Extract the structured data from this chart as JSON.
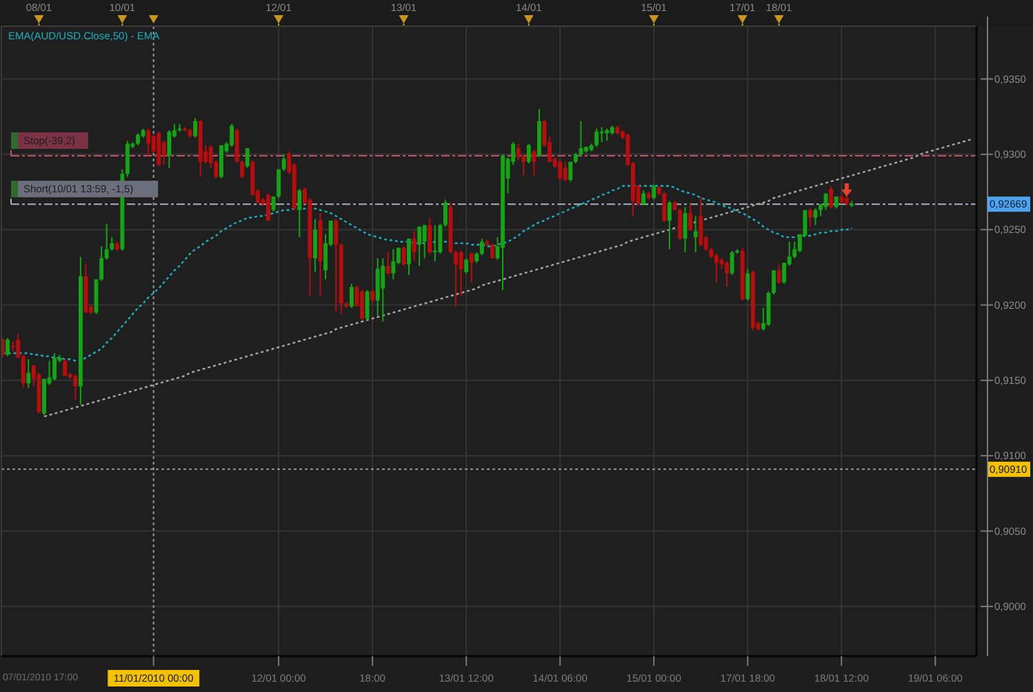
{
  "chart_data": [
    {
      "type": "other",
      "categories": [
        null,
        null,
        null,
        null,
        null,
        null,
        null,
        "08/01",
        null,
        null,
        null,
        null,
        null,
        null,
        null,
        null,
        null,
        null,
        null,
        null,
        null,
        null,
        null,
        "10/01",
        null,
        null,
        null,
        null,
        null,
        null,
        null,
        null,
        null,
        null,
        null,
        null,
        null,
        null,
        null,
        null,
        null,
        null,
        null,
        null,
        null,
        null,
        null,
        null,
        null,
        null,
        null,
        null,
        null,
        "12/01",
        null,
        null,
        null,
        null,
        null,
        null,
        null,
        null,
        null,
        null,
        null,
        null,
        null,
        null,
        null,
        null,
        null,
        null,
        null,
        null,
        null,
        null,
        null,
        "13/01",
        null,
        null,
        null,
        null,
        null,
        null,
        null,
        null,
        null,
        null,
        null,
        null,
        null,
        null,
        null,
        null,
        null,
        null,
        null,
        null,
        null,
        null,
        null,
        "14/01",
        null,
        null,
        null,
        null,
        null,
        null,
        null,
        null,
        null,
        null,
        null,
        null,
        null,
        null,
        null,
        null,
        null,
        null,
        null,
        null,
        null,
        null,
        null,
        "15/01",
        null,
        null,
        null,
        null,
        null,
        null,
        null,
        null,
        null,
        null,
        null,
        null,
        null,
        null,
        null,
        null,
        "17/01",
        null,
        null,
        null,
        null,
        null,
        null,
        "18/01",
        null,
        null,
        null,
        null,
        null,
        null,
        null,
        null,
        null,
        null,
        null,
        null,
        null,
        null,
        null,
        null,
        null,
        null,
        null,
        null,
        null,
        null,
        null,
        null,
        null,
        null,
        null,
        null,
        null,
        null,
        null,
        null,
        null,
        null,
        null,
        null,
        null
      ]
    },
    {
      "type": "candlestick",
      "categories": [
        null,
        null,
        null,
        null,
        null,
        null,
        null,
        null,
        null,
        null,
        null,
        null,
        null,
        null,
        null,
        null,
        null,
        null,
        null,
        null,
        null,
        null,
        null,
        null,
        null,
        null,
        null,
        null,
        null,
        "11/01/2010 00:00",
        null,
        null,
        null,
        null,
        null,
        null,
        null,
        null,
        null,
        null,
        null,
        null,
        null,
        null,
        null,
        null,
        null,
        null,
        null,
        null,
        null,
        null,
        null,
        "12/01 00:00",
        null,
        null,
        null,
        null,
        null,
        null,
        null,
        null,
        null,
        null,
        null,
        null,
        null,
        null,
        null,
        null,
        null,
        "18:00",
        null,
        null,
        null,
        null,
        null,
        null,
        null,
        null,
        null,
        null,
        null,
        null,
        null,
        null,
        null,
        null,
        null,
        "13/01 12:00",
        null,
        null,
        null,
        null,
        null,
        null,
        null,
        null,
        null,
        null,
        null,
        null,
        null,
        null,
        null,
        null,
        null,
        "14/01 06:00",
        null,
        null,
        null,
        null,
        null,
        null,
        null,
        null,
        null,
        null,
        null,
        null,
        null,
        null,
        null,
        null,
        null,
        "15/01 00:00",
        null,
        null,
        null,
        null,
        null,
        null,
        null,
        null,
        null,
        null,
        null,
        null,
        null,
        null,
        null,
        null,
        null,
        "17/01 18:00",
        null,
        null,
        null,
        null,
        null,
        null,
        null,
        null,
        null,
        null,
        null,
        null,
        null,
        null,
        null,
        null,
        null,
        "18/01 12:00",
        null,
        null,
        null,
        null,
        null,
        null,
        null,
        null,
        null,
        null,
        null,
        null,
        null,
        null,
        null,
        null,
        null,
        "19/01 06:00",
        null,
        null,
        null,
        null,
        null,
        null,
        null
      ],
      "ohlc": [
        [
          0.9177,
          0.9178,
          0.9165,
          0.9167
        ],
        [
          0.9167,
          0.9178,
          0.9166,
          0.9177
        ],
        [
          0.9173,
          0.9176,
          0.9169,
          0.9172
        ],
        [
          0.9177,
          0.9181,
          0.9165,
          0.9165
        ],
        [
          0.9166,
          0.9167,
          0.9145,
          0.9148
        ],
        [
          0.9148,
          0.9164,
          0.9145,
          0.9155
        ],
        [
          0.916,
          0.916,
          0.9146,
          0.9151
        ],
        [
          0.9154,
          0.9155,
          0.9128,
          0.9129
        ],
        [
          0.9128,
          0.9151,
          0.9127,
          0.9151
        ],
        [
          0.9148,
          0.9163,
          0.9147,
          0.9152
        ],
        [
          0.9151,
          0.9168,
          0.915,
          0.9165
        ],
        [
          0.9163,
          0.9167,
          0.9162,
          0.9165
        ],
        [
          0.9163,
          0.9164,
          0.9153,
          0.9153
        ],
        [
          0.9154,
          0.9155,
          0.9151,
          0.9152
        ],
        [
          0.9153,
          0.9154,
          0.9137,
          0.9146
        ],
        [
          0.9146,
          0.9232,
          0.9134,
          0.9219
        ],
        [
          0.9219,
          0.9227,
          0.9195,
          0.9195
        ],
        [
          0.9199,
          0.92,
          0.9194,
          0.9195
        ],
        [
          0.9195,
          0.9217,
          0.9194,
          0.9217
        ],
        [
          0.9217,
          0.9239,
          0.9216,
          0.9231
        ],
        [
          0.9231,
          0.9254,
          0.923,
          0.9237
        ],
        [
          0.9237,
          0.9245,
          0.9236,
          0.9241
        ],
        [
          0.9241,
          0.9242,
          0.9236,
          0.9237
        ],
        [
          0.9237,
          0.929,
          0.9236,
          0.9287
        ],
        [
          0.9287,
          0.9309,
          0.9285,
          0.9307
        ],
        [
          0.9305,
          0.9308,
          0.9304,
          0.9307
        ],
        [
          0.9307,
          0.9314,
          0.9306,
          0.9313
        ],
        [
          0.9312,
          0.9317,
          0.9311,
          0.9316
        ],
        [
          0.9316,
          0.9317,
          0.9299,
          0.9307
        ],
        [
          0.9312,
          0.9313,
          0.9301,
          0.9302
        ],
        [
          0.9314,
          0.9315,
          0.9292,
          0.9293
        ],
        [
          0.9308,
          0.9309,
          0.9293,
          0.9299
        ],
        [
          0.9299,
          0.9316,
          0.9291,
          0.9315
        ],
        [
          0.9312,
          0.932,
          0.9311,
          0.9316
        ],
        [
          0.9316,
          0.932,
          0.9315,
          0.9317
        ],
        [
          0.9317,
          0.9318,
          0.9315,
          0.9316
        ],
        [
          0.9316,
          0.9317,
          0.9311,
          0.9312
        ],
        [
          0.9312,
          0.9324,
          0.9311,
          0.9322
        ],
        [
          0.9322,
          0.9323,
          0.9285,
          0.9295
        ],
        [
          0.9302,
          0.9306,
          0.9294,
          0.9295
        ],
        [
          0.9305,
          0.9306,
          0.9291,
          0.9294
        ],
        [
          0.9295,
          0.9296,
          0.9284,
          0.9285
        ],
        [
          0.9285,
          0.9306,
          0.9284,
          0.9306
        ],
        [
          0.9302,
          0.9308,
          0.9301,
          0.9307
        ],
        [
          0.9306,
          0.932,
          0.9305,
          0.9319
        ],
        [
          0.9316,
          0.9317,
          0.9295,
          0.9295
        ],
        [
          0.9295,
          0.9296,
          0.9284,
          0.9285
        ],
        [
          0.9292,
          0.9304,
          0.9291,
          0.9304
        ],
        [
          0.9295,
          0.9296,
          0.9273,
          0.9273
        ],
        [
          0.9276,
          0.9277,
          0.9267,
          0.9268
        ],
        [
          0.927,
          0.9271,
          0.9266,
          0.9267
        ],
        [
          0.9273,
          0.9274,
          0.9256,
          0.9256
        ],
        [
          0.9263,
          0.9272,
          0.9262,
          0.9272
        ],
        [
          0.9272,
          0.929,
          0.9271,
          0.929
        ],
        [
          0.929,
          0.93,
          0.9289,
          0.9297
        ],
        [
          0.93,
          0.9302,
          0.9287,
          0.9288
        ],
        [
          0.9293,
          0.9294,
          0.9263,
          0.9264
        ],
        [
          0.9263,
          0.9277,
          0.9245,
          0.9276
        ],
        [
          0.9277,
          0.9278,
          0.9267,
          0.9268
        ],
        [
          0.927,
          0.9271,
          0.9206,
          0.9231
        ],
        [
          0.9231,
          0.9257,
          0.9222,
          0.925
        ],
        [
          0.9256,
          0.9261,
          0.9206,
          0.9229
        ],
        [
          0.9223,
          0.9247,
          0.9217,
          0.9241
        ],
        [
          0.924,
          0.9256,
          0.9239,
          0.9256
        ],
        [
          0.9256,
          0.9257,
          0.9196,
          0.924
        ],
        [
          0.924,
          0.9241,
          0.9194,
          0.9201
        ],
        [
          0.9201,
          0.9202,
          0.9198,
          0.9199
        ],
        [
          0.9199,
          0.9214,
          0.9198,
          0.9212
        ],
        [
          0.9212,
          0.9213,
          0.9199,
          0.9199
        ],
        [
          0.9209,
          0.921,
          0.919,
          0.9191
        ],
        [
          0.9191,
          0.921,
          0.919,
          0.9209
        ],
        [
          0.9209,
          0.921,
          0.9202,
          0.9203
        ],
        [
          0.9203,
          0.9231,
          0.9193,
          0.9224
        ],
        [
          0.9211,
          0.9231,
          0.9189,
          0.9226
        ],
        [
          0.9226,
          0.9235,
          0.922,
          0.9221
        ],
        [
          0.9221,
          0.9237,
          0.9217,
          0.9229
        ],
        [
          0.9228,
          0.9238,
          0.9227,
          0.9238
        ],
        [
          0.9238,
          0.9239,
          0.9226,
          0.9227
        ],
        [
          0.9227,
          0.9244,
          0.922,
          0.9244
        ],
        [
          0.9244,
          0.9249,
          0.9229,
          0.9235
        ],
        [
          0.924,
          0.9252,
          0.9226,
          0.9252
        ],
        [
          0.9242,
          0.9253,
          0.9231,
          0.9253
        ],
        [
          0.9253,
          0.9258,
          0.9234,
          0.9235
        ],
        [
          0.9235,
          0.9253,
          0.9229,
          0.9236
        ],
        [
          0.9235,
          0.9254,
          0.9234,
          0.9253
        ],
        [
          0.9253,
          0.927,
          0.9252,
          0.9268
        ],
        [
          0.9265,
          0.9268,
          0.9234,
          0.9235
        ],
        [
          0.9235,
          0.9236,
          0.9199,
          0.9227
        ],
        [
          0.9235,
          0.9236,
          0.9206,
          0.9224
        ],
        [
          0.9222,
          0.9231,
          0.9221,
          0.923
        ],
        [
          0.9234,
          0.9235,
          0.9215,
          0.9228
        ],
        [
          0.9229,
          0.9235,
          0.9228,
          0.9234
        ],
        [
          0.9234,
          0.9244,
          0.9233,
          0.9242
        ],
        [
          0.9242,
          0.9243,
          0.9239,
          0.924
        ],
        [
          0.924,
          0.9241,
          0.9231,
          0.9231
        ],
        [
          0.9231,
          0.9245,
          0.923,
          0.9239
        ],
        [
          0.9238,
          0.93,
          0.921,
          0.9299
        ],
        [
          0.9284,
          0.9298,
          0.9274,
          0.9297
        ],
        [
          0.9295,
          0.9308,
          0.9293,
          0.9307
        ],
        [
          0.9304,
          0.9307,
          0.9296,
          0.9298
        ],
        [
          0.9299,
          0.93,
          0.9286,
          0.9295
        ],
        [
          0.9295,
          0.9307,
          0.9294,
          0.9306
        ],
        [
          0.9302,
          0.9303,
          0.9286,
          0.9295
        ],
        [
          0.9299,
          0.933,
          0.9298,
          0.9322
        ],
        [
          0.9322,
          0.9323,
          0.9305,
          0.9306
        ],
        [
          0.9308,
          0.9312,
          0.9295,
          0.9295
        ],
        [
          0.9297,
          0.9298,
          0.9291,
          0.9292
        ],
        [
          0.9295,
          0.9296,
          0.9283,
          0.9284
        ],
        [
          0.9291,
          0.9295,
          0.9282,
          0.9283
        ],
        [
          0.9283,
          0.9295,
          0.9282,
          0.9295
        ],
        [
          0.9295,
          0.9301,
          0.9294,
          0.93
        ],
        [
          0.93,
          0.9322,
          0.9299,
          0.9304
        ],
        [
          0.9302,
          0.9305,
          0.9301,
          0.9305
        ],
        [
          0.9303,
          0.9307,
          0.9302,
          0.9306
        ],
        [
          0.9306,
          0.9317,
          0.9305,
          0.9315
        ],
        [
          0.9314,
          0.9318,
          0.9308,
          0.9315
        ],
        [
          0.9314,
          0.9317,
          0.9309,
          0.9316
        ],
        [
          0.9314,
          0.9319,
          0.9313,
          0.9318
        ],
        [
          0.9318,
          0.9319,
          0.9313,
          0.9314
        ],
        [
          0.9315,
          0.9316,
          0.931,
          0.9311
        ],
        [
          0.9313,
          0.9314,
          0.9292,
          0.9293
        ],
        [
          0.9294,
          0.9295,
          0.9259,
          0.9269
        ],
        [
          0.9279,
          0.928,
          0.9266,
          0.9267
        ],
        [
          0.9267,
          0.9276,
          0.9266,
          0.9274
        ],
        [
          0.9274,
          0.9275,
          0.927,
          0.9271
        ],
        [
          0.9271,
          0.928,
          0.927,
          0.9279
        ],
        [
          0.9278,
          0.9279,
          0.9273,
          0.9274
        ],
        [
          0.9274,
          0.9275,
          0.9255,
          0.9256
        ],
        [
          0.9256,
          0.9269,
          0.9237,
          0.9268
        ],
        [
          0.9268,
          0.9269,
          0.9263,
          0.9263
        ],
        [
          0.9263,
          0.9264,
          0.9243,
          0.9244
        ],
        [
          0.9244,
          0.9265,
          0.9235,
          0.9261
        ],
        [
          0.9261,
          0.9267,
          0.9249,
          0.925
        ],
        [
          0.9245,
          0.9259,
          0.9235,
          0.9249
        ],
        [
          0.9259,
          0.9272,
          0.9239,
          0.924
        ],
        [
          0.9245,
          0.9246,
          0.9236,
          0.9237
        ],
        [
          0.9237,
          0.9238,
          0.9231,
          0.9232
        ],
        [
          0.9233,
          0.9234,
          0.9215,
          0.9228
        ],
        [
          0.923,
          0.9231,
          0.9224,
          0.9227
        ],
        [
          0.9228,
          0.9229,
          0.9212,
          0.9221
        ],
        [
          0.9221,
          0.9236,
          0.922,
          0.9235
        ],
        [
          0.9235,
          0.9237,
          0.9234,
          0.9236
        ],
        [
          0.9236,
          0.9238,
          0.9203,
          0.9204
        ],
        [
          0.9204,
          0.9224,
          0.9203,
          0.9221
        ],
        [
          0.9222,
          0.9223,
          0.9183,
          0.9185
        ],
        [
          0.9188,
          0.9189,
          0.9183,
          0.9184
        ],
        [
          0.9184,
          0.9198,
          0.9183,
          0.9188
        ],
        [
          0.9187,
          0.9209,
          0.9186,
          0.9208
        ],
        [
          0.9208,
          0.9223,
          0.9207,
          0.9223
        ],
        [
          0.9223,
          0.9227,
          0.9214,
          0.9215
        ],
        [
          0.9215,
          0.9228,
          0.9214,
          0.9228
        ],
        [
          0.9227,
          0.9242,
          0.9226,
          0.9232
        ],
        [
          0.9232,
          0.9242,
          0.9231,
          0.9237
        ],
        [
          0.9236,
          0.9247,
          0.9235,
          0.9247
        ],
        [
          0.9246,
          0.9263,
          0.9245,
          0.9263
        ],
        [
          0.9263,
          0.9264,
          0.9252,
          0.9258
        ],
        [
          0.9258,
          0.9264,
          0.9253,
          0.9263
        ],
        [
          0.9263,
          0.9267,
          0.9259,
          0.9267
        ],
        [
          0.9265,
          0.9274,
          0.9263,
          0.9274
        ],
        [
          0.9277,
          0.9279,
          0.9264,
          0.9265
        ],
        [
          0.9265,
          0.9272,
          0.9264,
          0.9272
        ],
        [
          0.9272,
          0.9273,
          0.9267,
          0.9268
        ],
        [
          0.9271,
          0.9275,
          0.9266,
          0.9267
        ],
        [
          0.9266,
          0.9269,
          0.9265,
          0.92669
        ],
        null,
        null,
        null,
        null,
        null,
        null,
        null,
        null,
        null,
        null,
        null,
        null,
        null,
        null,
        null,
        null,
        null,
        null,
        null,
        null,
        null,
        null,
        null
      ],
      "colors": [
        "#b80d0d",
        "#14a514",
        "#b80d0d",
        "#b80d0d",
        "#b80d0d",
        "#14a514",
        "#b80d0d",
        "#b80d0d",
        "#14a514",
        "#14a514",
        "#14a514",
        "#14a514",
        "#b80d0d",
        "#b80d0d",
        "#b80d0d",
        "#14a514",
        "#b80d0d",
        "#b80d0d",
        "#14a514",
        "#14a514",
        "#14a514",
        "#14a514",
        "#b80d0d",
        "#14a514",
        "#14a514",
        "#14a514",
        "#14a514",
        "#14a514",
        "#b80d0d",
        "#b80d0d",
        "#b80d0d",
        "#b80d0d",
        "#14a514",
        "#14a514",
        "#14a514",
        "#b80d0d",
        "#b80d0d",
        "#14a514",
        "#b80d0d",
        "#b80d0d",
        "#b80d0d",
        "#b80d0d",
        "#14a514",
        "#14a514",
        "#14a514",
        "#b80d0d",
        "#b80d0d",
        "#14a514",
        "#b80d0d",
        "#b80d0d",
        "#b80d0d",
        "#b80d0d",
        "#14a514",
        "#14a514",
        "#14a514",
        "#b80d0d",
        "#b80d0d",
        "#14a514",
        "#b80d0d",
        "#b80d0d",
        "#14a514",
        "#b80d0d",
        "#14a514",
        "#14a514",
        "#b80d0d",
        "#b80d0d",
        "#b80d0d",
        "#14a514",
        "#b80d0d",
        "#b80d0d",
        "#14a514",
        "#b80d0d",
        "#14a514",
        "#14a514",
        "#b80d0d",
        "#14a514",
        "#14a514",
        "#b80d0d",
        "#14a514",
        "#b80d0d",
        "#14a514",
        "#14a514",
        "#b80d0d",
        "#14a514",
        "#14a514",
        "#14a514",
        "#b80d0d",
        "#b80d0d",
        "#b80d0d",
        "#14a514",
        "#b80d0d",
        "#14a514",
        "#14a514",
        "#b80d0d",
        "#b80d0d",
        "#14a514",
        "#14a514",
        "#14a514",
        "#14a514",
        "#b80d0d",
        "#b80d0d",
        "#14a514",
        "#b80d0d",
        "#14a514",
        "#b80d0d",
        "#b80d0d",
        "#b80d0d",
        "#b80d0d",
        "#b80d0d",
        "#14a514",
        "#14a514",
        "#14a514",
        "#14a514",
        "#14a514",
        "#14a514",
        "#14a514",
        "#14a514",
        "#14a514",
        "#b80d0d",
        "#b80d0d",
        "#b80d0d",
        "#b80d0d",
        "#b80d0d",
        "#14a514",
        "#b80d0d",
        "#14a514",
        "#b80d0d",
        "#b80d0d",
        "#14a514",
        "#b80d0d",
        "#b80d0d",
        "#14a514",
        "#b80d0d",
        "#14a514",
        "#b80d0d",
        "#b80d0d",
        "#b80d0d",
        "#b80d0d",
        "#b80d0d",
        "#b80d0d",
        "#14a514",
        "#14a514",
        "#b80d0d",
        "#14a514",
        "#b80d0d",
        "#b80d0d",
        "#14a514",
        "#14a514",
        "#14a514",
        "#b80d0d",
        "#14a514",
        "#14a514",
        "#14a514",
        "#14a514",
        "#14a514",
        "#b80d0d",
        "#14a514",
        "#14a514",
        "#14a514",
        "#b80d0d",
        "#14a514",
        "#b80d0d",
        "#b80d0d",
        "#14a514",
        null,
        null,
        null,
        null,
        null,
        null,
        null,
        null,
        null,
        null,
        null,
        null,
        null,
        null,
        null,
        null,
        null,
        null,
        null,
        null,
        null,
        null,
        null
      ],
      "series": [
        {
          "type": "line",
          "name": "EMA(AUD/USD.Close,50) - EMA",
          "color": "#1ab0c0",
          "line_style": "dotted",
          "values": [
            0.9168,
            0.9168,
            0.9168,
            0.9168,
            0.9168,
            0.9168,
            0.9167,
            0.9167,
            0.9166,
            0.9166,
            0.9165,
            0.9165,
            0.9164,
            0.9164,
            0.9163,
            0.9163,
            0.9165,
            0.9167,
            0.9169,
            0.9171,
            0.9175,
            0.9178,
            0.9182,
            0.9186,
            0.919,
            0.9194,
            0.9198,
            0.9201,
            0.9205,
            0.9208,
            0.9211,
            0.9215,
            0.9219,
            0.9223,
            0.9226,
            0.923,
            0.9234,
            0.9237,
            0.9239,
            0.9242,
            0.9244,
            0.9246,
            0.9249,
            0.9251,
            0.9253,
            0.9255,
            0.9256,
            0.9258,
            0.9258,
            0.9259,
            0.9259,
            0.926,
            0.9261,
            0.9262,
            0.9263,
            0.9263,
            0.9264,
            0.9264,
            0.9264,
            0.9264,
            0.9264,
            0.9263,
            0.9262,
            0.9261,
            0.9259,
            0.9257,
            0.9255,
            0.9253,
            0.9251,
            0.9249,
            0.9247,
            0.9246,
            0.9245,
            0.9244,
            0.9243,
            0.9243,
            0.9242,
            0.9242,
            0.9242,
            0.9241,
            0.9241,
            0.9241,
            0.9241,
            0.9242,
            0.9242,
            0.9242,
            0.9242,
            0.9241,
            0.9241,
            0.9241,
            0.924,
            0.924,
            0.924,
            0.9239,
            0.9239,
            0.924,
            0.9241,
            0.9242,
            0.9244,
            0.9246,
            0.9249,
            0.9251,
            0.9253,
            0.9255,
            0.9256,
            0.9258,
            0.9259,
            0.9261,
            0.9262,
            0.9264,
            0.9265,
            0.9267,
            0.9268,
            0.927,
            0.9271,
            0.9273,
            0.9274,
            0.9276,
            0.9277,
            0.9279,
            0.9279,
            0.9279,
            0.9279,
            0.9279,
            0.9279,
            0.9279,
            0.9279,
            0.9279,
            0.9279,
            0.9278,
            0.9276,
            0.9275,
            0.9274,
            0.9273,
            0.9271,
            0.927,
            0.9269,
            0.9268,
            0.9266,
            0.9265,
            0.9264,
            0.9262,
            0.9261,
            0.9259,
            0.9257,
            0.9255,
            0.9252,
            0.925,
            0.9248,
            0.9247,
            0.9245,
            0.9245,
            0.9245,
            0.9246,
            0.9246,
            0.9246,
            0.9247,
            0.9248,
            0.9248,
            0.9249,
            0.9249,
            0.925,
            0.925,
            0.9251,
            null,
            null,
            null,
            null,
            null,
            null,
            null,
            null,
            null,
            null,
            null,
            null,
            null,
            null,
            null,
            null,
            null,
            null,
            null,
            null,
            null,
            null,
            null
          ]
        },
        {
          "type": "line",
          "color": "#a8a8a8",
          "line_style": "dotted",
          "values": [
            null,
            null,
            null,
            null,
            null,
            null,
            null,
            null,
            0.9126,
            0.9127,
            0.9128,
            0.9129,
            0.913,
            0.9131,
            0.9132,
            0.9133,
            0.9134,
            0.9135,
            0.9136,
            0.9137,
            0.9138,
            0.9139,
            0.914,
            0.9141,
            0.9142,
            0.9143,
            0.9144,
            0.9145,
            0.9146,
            0.9147,
            0.9148,
            0.9149,
            0.915,
            0.9151,
            0.9152,
            0.9153,
            0.9155,
            0.9156,
            0.9157,
            0.9158,
            0.9159,
            0.916,
            0.9161,
            0.9162,
            0.9163,
            0.9164,
            0.9165,
            0.9166,
            0.9167,
            0.9168,
            0.9169,
            0.917,
            0.9171,
            0.9172,
            0.9173,
            0.9174,
            0.9175,
            0.9176,
            0.9177,
            0.9178,
            0.9179,
            0.918,
            0.9181,
            0.9182,
            0.9184,
            0.9185,
            0.9186,
            0.9187,
            0.9188,
            0.9189,
            0.919,
            0.9191,
            0.9192,
            0.9193,
            0.9194,
            0.9195,
            0.9196,
            0.9197,
            0.9198,
            0.9199,
            0.92,
            0.9201,
            0.9202,
            0.9203,
            0.9204,
            0.9205,
            0.9206,
            0.9207,
            0.9208,
            0.9209,
            0.921,
            0.9211,
            0.9213,
            0.9214,
            0.9215,
            0.9216,
            0.9217,
            0.9218,
            0.9219,
            0.922,
            0.9221,
            0.9222,
            0.9223,
            0.9224,
            0.9225,
            0.9226,
            0.9227,
            0.9228,
            0.9229,
            0.923,
            0.9231,
            0.9232,
            0.9233,
            0.9234,
            0.9235,
            0.9236,
            0.9237,
            0.9238,
            0.9239,
            0.924,
            0.9242,
            0.9243,
            0.9244,
            0.9245,
            0.9246,
            0.9247,
            0.9248,
            0.9249,
            0.925,
            0.9251,
            0.9252,
            0.9253,
            0.9254,
            0.9255,
            0.9256,
            0.9257,
            0.9258,
            0.9259,
            0.926,
            0.9261,
            0.9262,
            0.9263,
            0.9264,
            0.9265,
            0.9266,
            0.9267,
            0.9268,
            0.9269,
            0.9271,
            0.9272,
            0.9273,
            0.9274,
            0.9275,
            0.9276,
            0.9277,
            0.9278,
            0.9279,
            0.928,
            0.9281,
            0.9282,
            0.9283,
            0.9284,
            0.9285,
            0.9286,
            0.9287,
            0.9288,
            0.9289,
            0.929,
            0.9291,
            0.9292,
            0.9293,
            0.9294,
            0.9295,
            0.9296,
            0.9297,
            0.9298,
            0.93,
            0.9301,
            0.9302,
            0.9303,
            0.9304,
            0.9305,
            0.9306,
            0.9307,
            0.9308,
            0.9309,
            0.931
          ]
        }
      ],
      "ylim": [
        0.8967,
        0.9385
      ],
      "yticks": [
        {
          "value": 0.935,
          "label": "0,9350"
        },
        {
          "value": 0.93,
          "label": "0,9300"
        },
        {
          "value": 0.925,
          "label": "0,9250"
        },
        {
          "value": 0.92,
          "label": "0,9200"
        },
        {
          "value": 0.915,
          "label": "0,9150"
        },
        {
          "value": 0.91,
          "label": "0,9100"
        },
        {
          "value": 0.905,
          "label": "0,9050"
        },
        {
          "value": 0.9,
          "label": "0,9000"
        }
      ],
      "ref_lines": [
        {
          "axis": "y",
          "value": 0.9299,
          "label": "Stop(-39,2)",
          "color": "#c4506c",
          "line_style": "dashed"
        },
        {
          "axis": "y",
          "value": 0.92669,
          "label": "Short(10/01 13:59, -1,5)",
          "color": "#aab0c4",
          "line_style": "dashed"
        },
        {
          "axis": "y",
          "value": 0.9091,
          "label": "0,90910",
          "color": "#9a9a9a",
          "line_style": "dotted"
        },
        {
          "axis": "x",
          "value": "11/01/2010 00:00",
          "color": "#9a9a9a",
          "line_style": "dotted"
        }
      ],
      "annotations": [
        "07/01/2010 17:00",
        "0,92669"
      ],
      "legend": "top left",
      "grid": true
    }
  ]
}
